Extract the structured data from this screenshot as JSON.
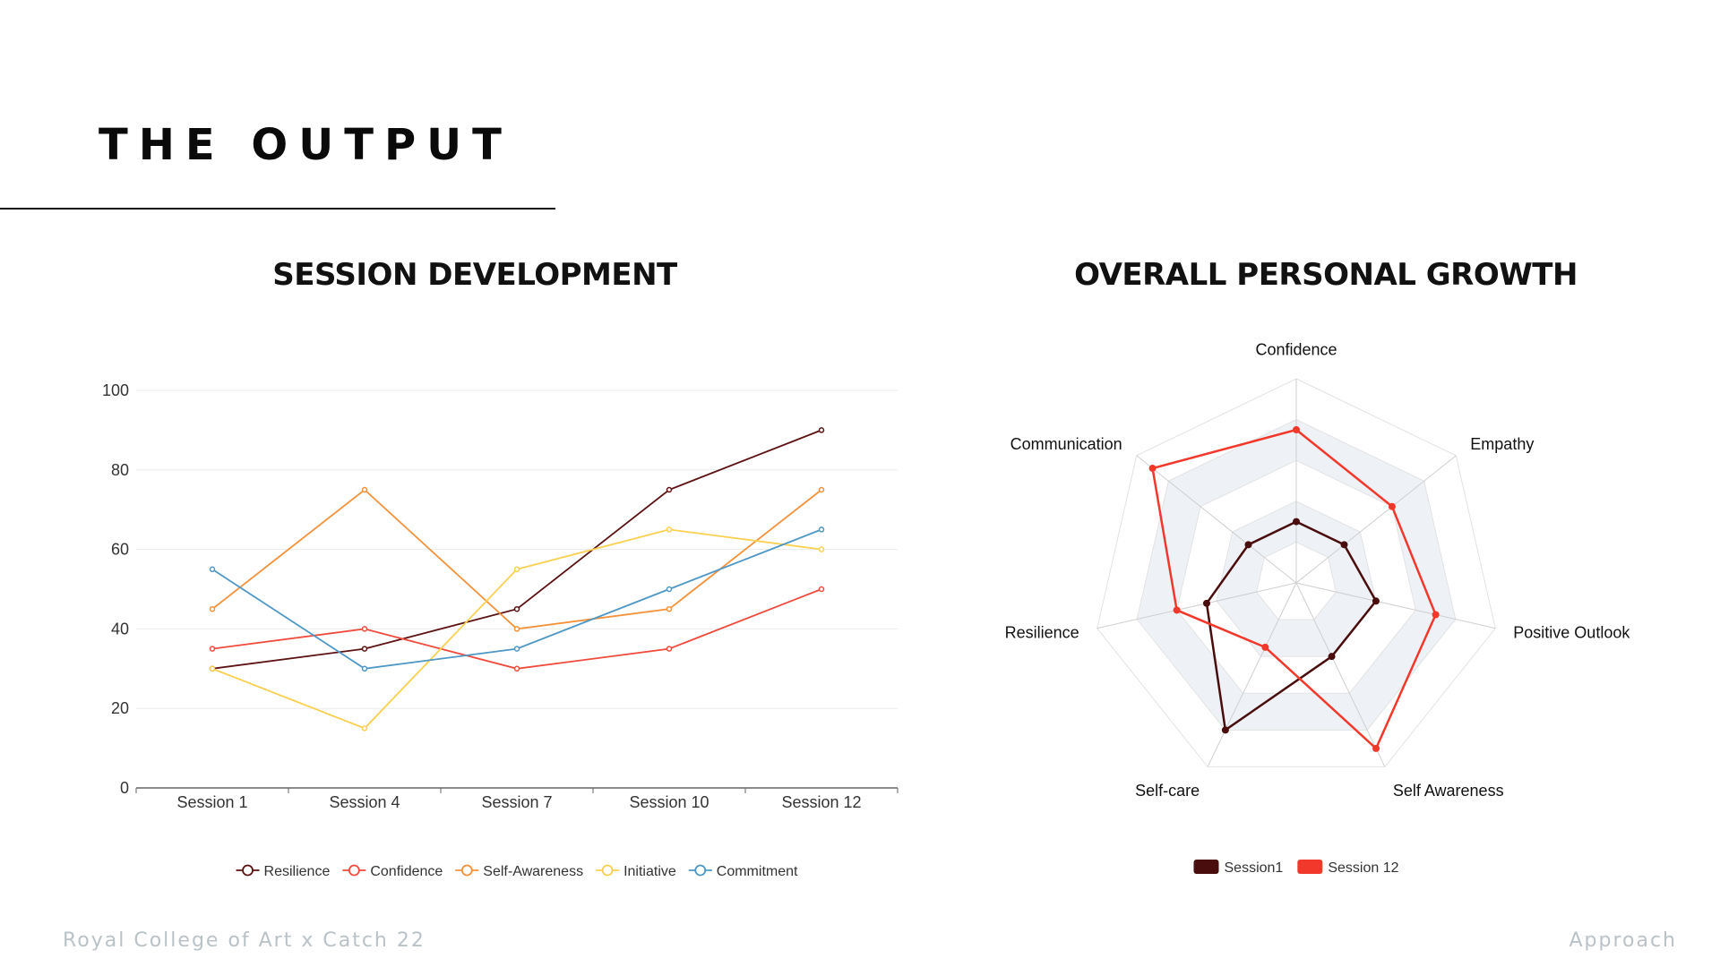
{
  "page": {
    "title": "THE OUTPUT",
    "footer_left": "Royal College of Art x Catch 22",
    "footer_right": "Approach"
  },
  "charts": {
    "left_heading": "SESSION DEVELOPMENT",
    "right_heading": "OVERALL PERSONAL GROWTH"
  },
  "chart_data": [
    {
      "type": "line",
      "title": "SESSION DEVELOPMENT",
      "categories": [
        "Session 1",
        "Session 4",
        "Session 7",
        "Session 10",
        "Session 12"
      ],
      "ylim": [
        0,
        100
      ],
      "yticks": [
        0,
        20,
        40,
        60,
        80,
        100
      ],
      "grid": true,
      "legend": "bottom",
      "series": [
        {
          "name": "Resilience",
          "color": "#5c1212",
          "values": [
            30,
            35,
            45,
            75,
            90
          ]
        },
        {
          "name": "Confidence",
          "color": "#f04a3c",
          "values": [
            35,
            40,
            30,
            35,
            50
          ]
        },
        {
          "name": "Self-Awareness",
          "color": "#f5913a",
          "values": [
            45,
            75,
            40,
            45,
            75
          ]
        },
        {
          "name": "Initiative",
          "color": "#fbd050",
          "values": [
            30,
            15,
            55,
            65,
            60
          ]
        },
        {
          "name": "Commitment",
          "color": "#4f97c4",
          "values": [
            55,
            30,
            35,
            50,
            65
          ]
        }
      ]
    },
    {
      "type": "radar",
      "title": "OVERALL PERSONAL GROWTH",
      "axes": [
        "Confidence",
        "Empathy",
        "Positive Outlook",
        "Self Awareness",
        "Self-care",
        "Resilience",
        "Communication"
      ],
      "range": [
        0,
        100
      ],
      "legend": "bottom",
      "series": [
        {
          "name": "Session1",
          "color": "#4a0d0d",
          "values": [
            30,
            30,
            40,
            40,
            80,
            45,
            30
          ]
        },
        {
          "name": "Session 12",
          "color": "#f2382a",
          "values": [
            75,
            60,
            70,
            90,
            35,
            60,
            90
          ]
        }
      ]
    }
  ]
}
